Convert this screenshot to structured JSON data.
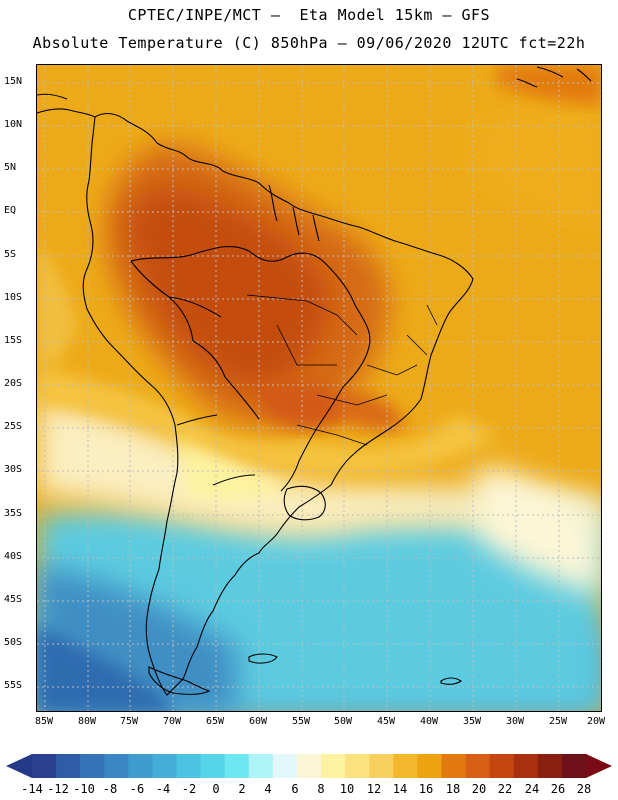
{
  "header": {
    "title_line1": "CPTEC/INPE/MCT –  Eta Model 15km – GFS",
    "title_line2": "Absolute Temperature (C) 850hPa – 09/06/2020 12UTC fct=22h"
  },
  "map": {
    "latitude_labels": [
      "15N",
      "10N",
      "5N",
      "EQ",
      "5S",
      "10S",
      "15S",
      "20S",
      "25S",
      "30S",
      "35S",
      "40S",
      "45S",
      "50S",
      "55S"
    ],
    "longitude_labels": [
      "85W",
      "80W",
      "75W",
      "70W",
      "65W",
      "60W",
      "55W",
      "50W",
      "45W",
      "40W",
      "35W",
      "30W",
      "25W",
      "20W"
    ]
  },
  "colorbar": {
    "labels": [
      "-14",
      "-12",
      "-10",
      "-8",
      "-6",
      "-4",
      "-2",
      "0",
      "2",
      "4",
      "6",
      "8",
      "10",
      "12",
      "14",
      "16",
      "18",
      "20",
      "22",
      "24",
      "26",
      "28"
    ],
    "colors": [
      "#2a3f8f",
      "#2e5ca6",
      "#3573b8",
      "#3b86c4",
      "#3f9ccf",
      "#45aed8",
      "#4cc3e0",
      "#56d4e8",
      "#6de8f2",
      "#aef4f8",
      "#e2f8fa",
      "#fbf6d6",
      "#fdf2a0",
      "#fbe27e",
      "#f7cf5e",
      "#f2b72c",
      "#eda210",
      "#e27a10",
      "#d65f14",
      "#c44610",
      "#a8300c",
      "#8a1f10",
      "#6e1018"
    ],
    "under_color": "#243a88",
    "over_color": "#7a0a14"
  }
}
